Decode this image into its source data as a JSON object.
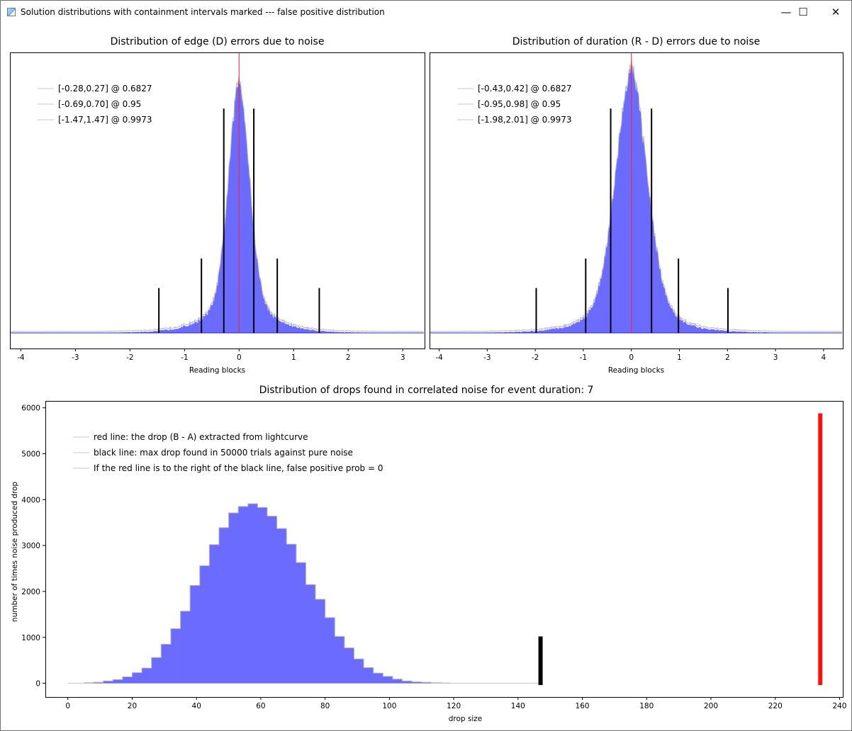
{
  "window": {
    "title": "Solution distributions with containment intervals marked --- false positive distribution",
    "minimize_glyph": "—",
    "maximize_glyph": "☐",
    "close_glyph": "✕"
  },
  "colors": {
    "histogram_fill": "#6b6bff",
    "histogram_edge": "#b8b8b8",
    "baseline": "#2a2ad0",
    "center_line": "#ff2020",
    "interval_line": "#000000",
    "max_noise_drop": "#000000",
    "observed_drop": "#ff1010"
  },
  "chart_data": [
    {
      "type": "bar",
      "title": "Distribution of edge (D) errors due to noise",
      "xlabel": "Reading blocks",
      "ylabel": "",
      "xlim": [
        -4.2,
        3.4
      ],
      "xticks": [
        "-4",
        "-3",
        "-2",
        "-1",
        "0",
        "1",
        "2",
        "3"
      ],
      "distribution": {
        "center": 0,
        "core_sigma": 0.19,
        "tail_scale": 0.42
      },
      "center_line": 0,
      "intervals": [
        {
          "lo": -0.28,
          "hi": 0.27,
          "level": 0.6827
        },
        {
          "lo": -0.69,
          "hi": 0.7,
          "level": 0.95
        },
        {
          "lo": -1.47,
          "hi": 1.47,
          "level": 0.9973
        }
      ],
      "legend": [
        "[-0.28,0.27] @ 0.6827",
        "[-0.69,0.70] @ 0.95",
        "[-1.47,1.47] @ 0.9973"
      ],
      "legend_position": "top-left"
    },
    {
      "type": "bar",
      "title": "Distribution of duration (R - D) errors due to noise",
      "xlabel": "Reading blocks",
      "ylabel": "",
      "xlim": [
        -4.2,
        4.4
      ],
      "xticks": [
        "-4",
        "-3",
        "-2",
        "-1",
        "0",
        "1",
        "2",
        "3",
        "4"
      ],
      "distribution": {
        "center": 0,
        "core_sigma": 0.33,
        "tail_scale": 0.55
      },
      "center_line": 0,
      "intervals": [
        {
          "lo": -0.43,
          "hi": 0.42,
          "level": 0.6827
        },
        {
          "lo": -0.95,
          "hi": 0.98,
          "level": 0.95
        },
        {
          "lo": -1.98,
          "hi": 2.01,
          "level": 0.9973
        }
      ],
      "legend": [
        "[-0.43,0.42] @ 0.6827",
        "[-0.95,0.98] @ 0.95",
        "[-1.98,2.01] @ 0.9973"
      ],
      "legend_position": "top-left"
    },
    {
      "type": "bar",
      "title": "Distribution of drops found in correlated noise for event duration: 7",
      "xlabel": "drop size",
      "ylabel": "number of times noise produced drop",
      "xlim": [
        -7,
        241
      ],
      "ylim": [
        -300,
        6150
      ],
      "xticks": [
        "0",
        "20",
        "40",
        "60",
        "80",
        "100",
        "120",
        "140",
        "160",
        "180",
        "200",
        "220",
        "240"
      ],
      "yticks": [
        "0",
        "1000",
        "2000",
        "3000",
        "4000",
        "5000",
        "6000"
      ],
      "bin_width": 3,
      "bins_start": 5,
      "values": [
        10,
        20,
        50,
        80,
        140,
        230,
        330,
        560,
        850,
        1190,
        1570,
        2130,
        2560,
        3020,
        3390,
        3710,
        3850,
        3910,
        3830,
        3640,
        3370,
        3030,
        2630,
        2150,
        1830,
        1430,
        1020,
        770,
        530,
        340,
        220,
        150,
        90,
        50,
        30,
        20,
        10,
        5
      ],
      "tail_end": 147,
      "max_noise_drop": {
        "x": 147,
        "height": 1020
      },
      "observed_drop": {
        "x": 234,
        "height": 5880
      },
      "legend": [
        "red line: the drop (B - A) extracted from lightcurve",
        "black line: max drop found in 50000 trials against pure noise",
        "If the red line is to the right of the black line, false positive prob = 0"
      ],
      "legend_position": "top-left"
    }
  ]
}
